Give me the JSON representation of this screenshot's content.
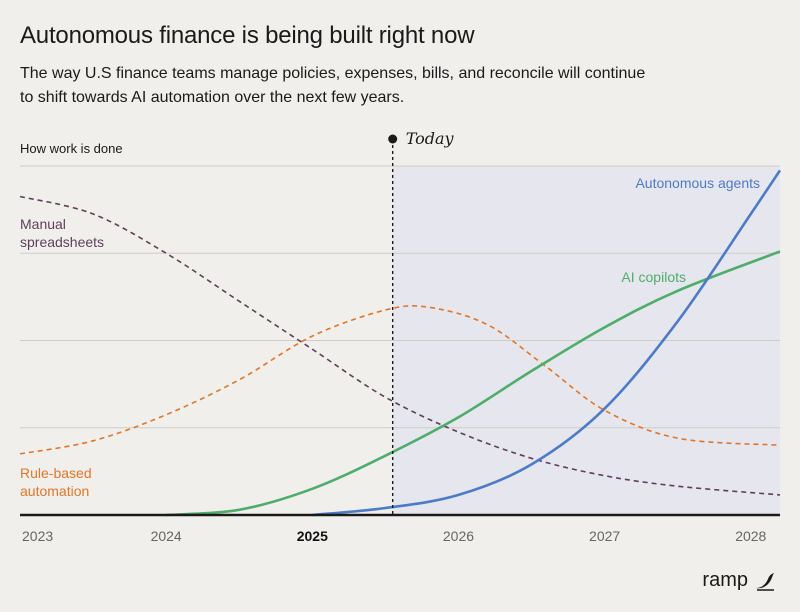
{
  "header": {
    "title": "Autonomous finance is being built right now",
    "subtitle": "The way U.S finance teams manage policies, expenses, bills, and reconcile will continue to shift towards AI automation over the next few years."
  },
  "brand": {
    "name": "ramp",
    "icon": "ramp-wing-icon"
  },
  "chart_data": {
    "type": "line",
    "ylabel": "How work is done",
    "x_ticks": [
      "2023",
      "2024",
      "2025",
      "2026",
      "2027",
      "2028"
    ],
    "x_tick_bold": "2025",
    "xlim": [
      2023,
      2028.2
    ],
    "ylim": [
      0,
      4
    ],
    "grid": true,
    "today": {
      "label": "Today",
      "x": 2025.55
    },
    "series": [
      {
        "name": "Manual spreadsheets",
        "color": "#5e3f5b",
        "dashed": true,
        "label_lines": [
          "Manual",
          "spreadsheets"
        ],
        "points": [
          [
            2023.0,
            3.65
          ],
          [
            2023.5,
            3.45
          ],
          [
            2024.0,
            3.0
          ],
          [
            2024.5,
            2.45
          ],
          [
            2025.0,
            1.9
          ],
          [
            2025.5,
            1.35
          ],
          [
            2026.0,
            0.95
          ],
          [
            2026.5,
            0.65
          ],
          [
            2027.0,
            0.45
          ],
          [
            2027.5,
            0.33
          ],
          [
            2028.2,
            0.23
          ]
        ]
      },
      {
        "name": "Rule-based automation",
        "color": "#e07628",
        "dashed": true,
        "label_lines": [
          "Rule-based",
          "automation"
        ],
        "points": [
          [
            2023.0,
            0.7
          ],
          [
            2023.5,
            0.85
          ],
          [
            2024.0,
            1.15
          ],
          [
            2024.5,
            1.55
          ],
          [
            2025.0,
            2.05
          ],
          [
            2025.5,
            2.35
          ],
          [
            2025.8,
            2.38
          ],
          [
            2026.2,
            2.18
          ],
          [
            2026.6,
            1.7
          ],
          [
            2027.0,
            1.2
          ],
          [
            2027.5,
            0.88
          ],
          [
            2028.2,
            0.8
          ]
        ]
      },
      {
        "name": "AI copilots",
        "color": "#4ead6a",
        "dashed": false,
        "label_lines": [
          "AI copilots"
        ],
        "points": [
          [
            2024.0,
            0.0
          ],
          [
            2024.5,
            0.06
          ],
          [
            2025.0,
            0.3
          ],
          [
            2025.5,
            0.68
          ],
          [
            2026.0,
            1.12
          ],
          [
            2026.5,
            1.65
          ],
          [
            2027.0,
            2.15
          ],
          [
            2027.5,
            2.57
          ],
          [
            2028.2,
            3.02
          ]
        ]
      },
      {
        "name": "Autonomous agents",
        "color": "#4d7bc6",
        "dashed": false,
        "label_lines": [
          "Autonomous agents"
        ],
        "points": [
          [
            2025.0,
            0.0
          ],
          [
            2025.5,
            0.08
          ],
          [
            2026.0,
            0.23
          ],
          [
            2026.5,
            0.58
          ],
          [
            2027.0,
            1.22
          ],
          [
            2027.5,
            2.22
          ],
          [
            2028.0,
            3.45
          ],
          [
            2028.2,
            3.95
          ]
        ]
      }
    ]
  }
}
